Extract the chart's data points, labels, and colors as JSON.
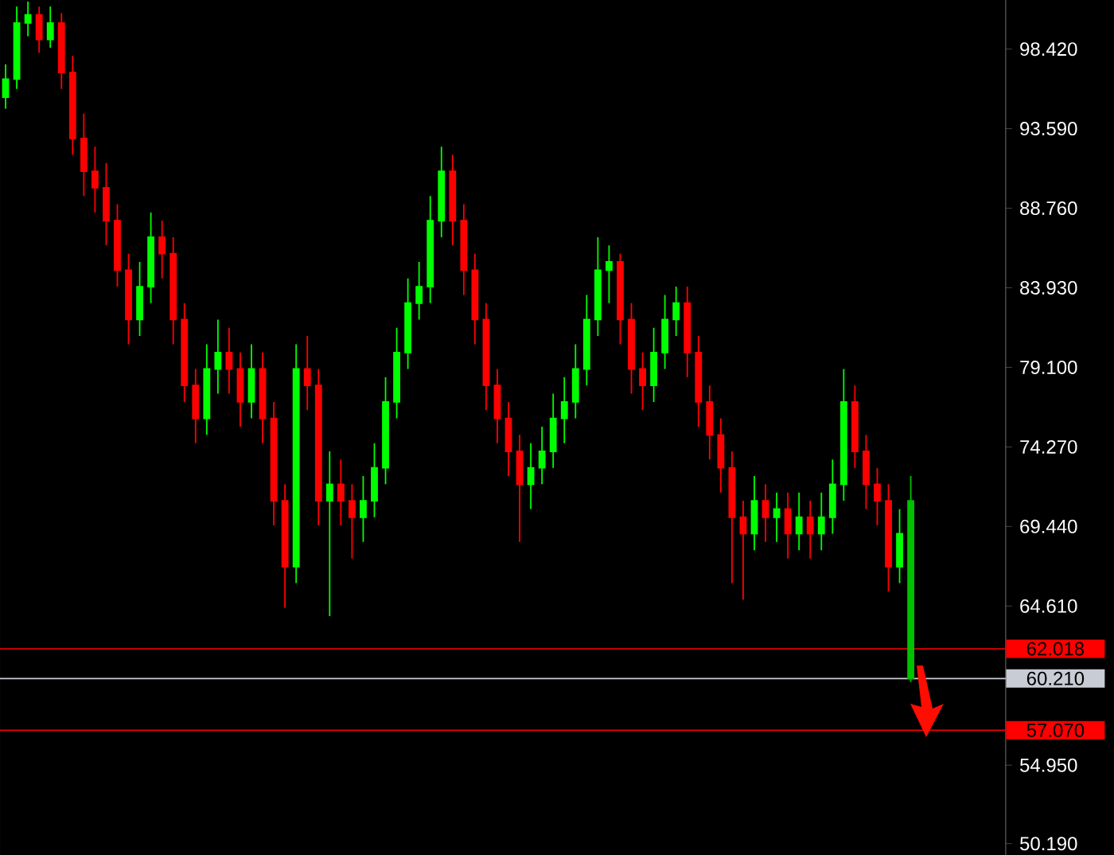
{
  "chart_data": {
    "type": "candlestick",
    "categories": [
      null,
      null,
      null,
      null,
      null,
      null,
      null,
      null,
      null,
      null,
      null,
      null,
      null,
      null,
      null,
      null,
      null,
      null,
      null,
      null,
      null,
      null,
      null,
      null,
      null,
      null,
      null,
      null,
      null,
      null,
      null,
      null,
      null,
      null,
      null,
      null,
      null,
      null,
      null,
      null,
      null,
      null,
      null,
      null,
      null,
      null,
      null,
      null,
      null,
      null,
      null,
      null,
      null,
      null,
      null,
      null,
      null,
      null,
      null,
      null,
      null,
      null,
      null,
      null,
      null,
      null,
      null,
      null,
      null,
      null,
      null,
      null,
      null,
      null,
      null,
      null,
      null,
      null,
      null,
      null,
      null,
      null,
      null,
      null,
      null,
      null,
      null,
      null,
      null,
      null
    ],
    "ohlc": [
      [
        95.5,
        97.5,
        94.8,
        96.6
      ],
      [
        96.6,
        101,
        96,
        100
      ],
      [
        100,
        101.3,
        99.2,
        100.5
      ],
      [
        100.5,
        101,
        98.2,
        99
      ],
      [
        99,
        101,
        98.5,
        100
      ],
      [
        100,
        100.6,
        96,
        97
      ],
      [
        97,
        98,
        92,
        93
      ],
      [
        93,
        94.5,
        89.5,
        91
      ],
      [
        91,
        92.5,
        88.5,
        90
      ],
      [
        90,
        91.5,
        86.5,
        88
      ],
      [
        88,
        89,
        84,
        85
      ],
      [
        85,
        86,
        80.5,
        82
      ],
      [
        82,
        85.5,
        81,
        84
      ],
      [
        84,
        88.5,
        83,
        87
      ],
      [
        87,
        88,
        84.5,
        86
      ],
      [
        86,
        87,
        80.5,
        82
      ],
      [
        82,
        83,
        77,
        78
      ],
      [
        78,
        79,
        74.5,
        76
      ],
      [
        76,
        80.5,
        75,
        79
      ],
      [
        79,
        82,
        77.5,
        80
      ],
      [
        80,
        81.5,
        77.5,
        79
      ],
      [
        79,
        80,
        75.5,
        77
      ],
      [
        77,
        80.5,
        76,
        79
      ],
      [
        79,
        80,
        74.5,
        76
      ],
      [
        76,
        77,
        69.5,
        71
      ],
      [
        71,
        72,
        64.5,
        67
      ],
      [
        67,
        80.5,
        66,
        79
      ],
      [
        79,
        81,
        76.5,
        78
      ],
      [
        78,
        79,
        69.5,
        71
      ],
      [
        71,
        74,
        64,
        72
      ],
      [
        72,
        73.5,
        69.5,
        71
      ],
      [
        71,
        72,
        67.5,
        70
      ],
      [
        70,
        72.5,
        68.5,
        71
      ],
      [
        71,
        74.5,
        70,
        73
      ],
      [
        73,
        78.5,
        72,
        77
      ],
      [
        77,
        81.5,
        76,
        80
      ],
      [
        80,
        84.5,
        79,
        83
      ],
      [
        83,
        85.5,
        82,
        84
      ],
      [
        84,
        89.5,
        83,
        88
      ],
      [
        88,
        92.5,
        87,
        91
      ],
      [
        91,
        92,
        86.5,
        88
      ],
      [
        88,
        89,
        83.5,
        85
      ],
      [
        85,
        86,
        80.5,
        82
      ],
      [
        82,
        83,
        76.5,
        78
      ],
      [
        78,
        79,
        74.5,
        76
      ],
      [
        76,
        77,
        72.5,
        74
      ],
      [
        74,
        75,
        68.5,
        72
      ],
      [
        72,
        74.5,
        70.5,
        73
      ],
      [
        73,
        75.5,
        72,
        74
      ],
      [
        74,
        77.5,
        73,
        76
      ],
      [
        76,
        78.5,
        74.5,
        77
      ],
      [
        77,
        80.5,
        76,
        79
      ],
      [
        79,
        83.5,
        78,
        82
      ],
      [
        82,
        87,
        81,
        85
      ],
      [
        85,
        86.5,
        83,
        85.5
      ],
      [
        85.5,
        86,
        80.5,
        82
      ],
      [
        82,
        83,
        77.5,
        79
      ],
      [
        79,
        80,
        76.5,
        78
      ],
      [
        78,
        81.5,
        77,
        80
      ],
      [
        80,
        83.5,
        79,
        82
      ],
      [
        82,
        84,
        81,
        83
      ],
      [
        83,
        84,
        78.5,
        80
      ],
      [
        80,
        81,
        75.5,
        77
      ],
      [
        77,
        78,
        73.5,
        75
      ],
      [
        75,
        76,
        71.5,
        73
      ],
      [
        73,
        74,
        66,
        70
      ],
      [
        70,
        71,
        65,
        69
      ],
      [
        69,
        72.5,
        68,
        71
      ],
      [
        71,
        72,
        68.5,
        70
      ],
      [
        70,
        71.5,
        68.5,
        70.5
      ],
      [
        70.5,
        71.5,
        67.5,
        69
      ],
      [
        69,
        71.5,
        68,
        70
      ],
      [
        70,
        71,
        67.5,
        69
      ],
      [
        69,
        71.5,
        68,
        70
      ],
      [
        70,
        73.5,
        69,
        72
      ],
      [
        72,
        79,
        71,
        77
      ],
      [
        77,
        78,
        73,
        74
      ],
      [
        74,
        75,
        70.5,
        72
      ],
      [
        72,
        73,
        69.5,
        71
      ],
      [
        71,
        72,
        65.5,
        67
      ],
      [
        67,
        70.5,
        66,
        69
      ],
      [
        71,
        72.5,
        60,
        60.21
      ],
      null,
      null,
      null,
      null,
      null,
      null,
      null,
      null
    ],
    "colors": [
      "#00ff00",
      "#00ff00",
      "#00ff00",
      "#ff0000",
      "#00ff00",
      "#ff0000",
      "#ff0000",
      "#ff0000",
      "#ff0000",
      "#ff0000",
      "#ff0000",
      "#ff0000",
      "#00ff00",
      "#00ff00",
      "#ff0000",
      "#ff0000",
      "#ff0000",
      "#ff0000",
      "#00ff00",
      "#00ff00",
      "#ff0000",
      "#ff0000",
      "#00ff00",
      "#ff0000",
      "#ff0000",
      "#ff0000",
      "#00ff00",
      "#ff0000",
      "#ff0000",
      "#00ff00",
      "#ff0000",
      "#ff0000",
      "#00ff00",
      "#00ff00",
      "#00ff00",
      "#00ff00",
      "#00ff00",
      "#00ff00",
      "#00ff00",
      "#00ff00",
      "#ff0000",
      "#ff0000",
      "#ff0000",
      "#ff0000",
      "#ff0000",
      "#ff0000",
      "#ff0000",
      "#00ff00",
      "#00ff00",
      "#00ff00",
      "#00ff00",
      "#00ff00",
      "#00ff00",
      "#00ff00",
      "#00ff00",
      "#ff0000",
      "#ff0000",
      "#ff0000",
      "#00ff00",
      "#00ff00",
      "#00ff00",
      "#ff0000",
      "#ff0000",
      "#ff0000",
      "#ff0000",
      "#ff0000",
      "#ff0000",
      "#00ff00",
      "#ff0000",
      "#00ff00",
      "#ff0000",
      "#00ff00",
      "#ff0000",
      "#00ff00",
      "#00ff00",
      "#00ff00",
      "#ff0000",
      "#ff0000",
      "#ff0000",
      "#ff0000",
      "#00ff00",
      "#00c000",
      null,
      null,
      null,
      null,
      null,
      null,
      null,
      null
    ],
    "ylim": [
      49.5,
      101.4
    ],
    "yticks": [
      {
        "value": 50.19,
        "label": "50.190"
      },
      {
        "value": 54.95,
        "label": "54.950"
      },
      {
        "value": 59.78,
        "label": null
      },
      {
        "value": 64.61,
        "label": "64.610"
      },
      {
        "value": 69.44,
        "label": "69.440"
      },
      {
        "value": 74.27,
        "label": "74.270"
      },
      {
        "value": 79.1,
        "label": "79.100"
      },
      {
        "value": 83.93,
        "label": "83.930"
      },
      {
        "value": 88.76,
        "label": "88.760"
      },
      {
        "value": 93.59,
        "label": "93.590"
      },
      {
        "value": 98.42,
        "label": "98.420"
      }
    ],
    "tick_labels": "y",
    "ref_lines": [
      {
        "axis": "y",
        "value": 62.018,
        "label": "62.018",
        "color": "#ff0000"
      },
      {
        "axis": "y",
        "value": 60.21,
        "label": "60.210",
        "color": "#c8ccd4"
      },
      {
        "axis": "y",
        "value": 57.07,
        "label": "57.070",
        "color": "#ff0000"
      }
    ]
  }
}
